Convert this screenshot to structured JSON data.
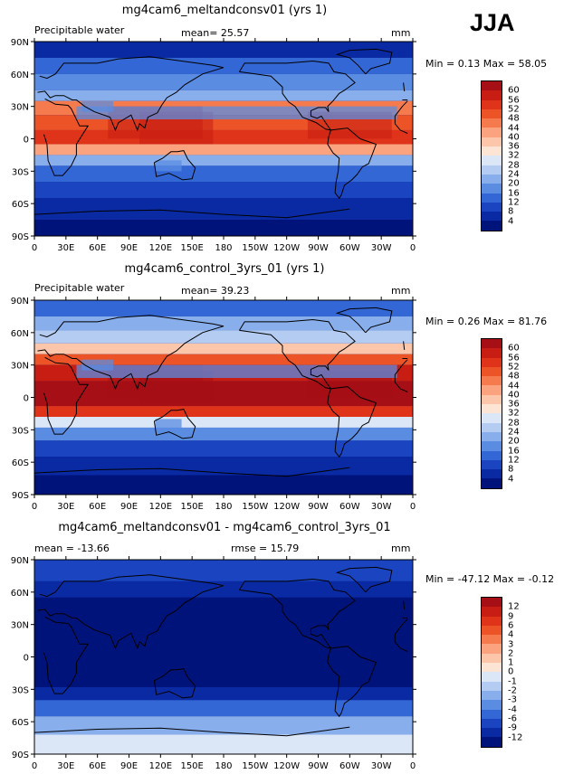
{
  "season_label": "JJA",
  "panels": [
    {
      "title": "mg4cam6_meltandconsv01 (yrs 1)",
      "left_label": "Precipitable water",
      "mean_label": "mean=  25.57",
      "unit": "mm",
      "minmax": "Min =   0.13  Max =  58.05",
      "cbar_labels": [
        "60",
        "56",
        "52",
        "48",
        "44",
        "40",
        "36",
        "32",
        "28",
        "24",
        "20",
        "16",
        "12",
        "8",
        "4"
      ],
      "cbar_colors": [
        "#a50f15",
        "#c81d12",
        "#e0341a",
        "#ec5428",
        "#f57b4e",
        "#fba27e",
        "#fcc6ab",
        "#fde5d6",
        "#dbe6f6",
        "#b4ccf1",
        "#88aeeb",
        "#5a8ce2",
        "#3467d6",
        "#1b45c0",
        "#0a2aa3",
        "#00137a"
      ],
      "field": "wet"
    },
    {
      "title": "mg4cam6_control_3yrs_01 (yrs 1)",
      "left_label": "Precipitable water",
      "mean_label": "mean=  39.23",
      "unit": "mm",
      "minmax": "Min =   0.26  Max =  81.76",
      "cbar_labels": [
        "60",
        "56",
        "52",
        "48",
        "44",
        "40",
        "36",
        "32",
        "28",
        "24",
        "20",
        "16",
        "12",
        "8",
        "4"
      ],
      "cbar_colors": [
        "#a50f15",
        "#c81d12",
        "#e0341a",
        "#ec5428",
        "#f57b4e",
        "#fba27e",
        "#fcc6ab",
        "#fde5d6",
        "#dbe6f6",
        "#b4ccf1",
        "#88aeeb",
        "#5a8ce2",
        "#3467d6",
        "#1b45c0",
        "#0a2aa3",
        "#00137a"
      ],
      "field": "wetter"
    },
    {
      "title": "mg4cam6_meltandconsv01 - mg4cam6_control_3yrs_01",
      "left_label": "mean = -13.66",
      "mean_label": "rmse =  15.79",
      "unit": "mm",
      "minmax": "Min = -47.12  Max =  -0.12",
      "cbar_labels": [
        "12",
        "9",
        "6",
        "4",
        "3",
        "2",
        "1",
        "0",
        "-1",
        "-2",
        "-3",
        "-4",
        "-6",
        "-9",
        "-12"
      ],
      "cbar_colors": [
        "#a50f15",
        "#c81d12",
        "#e0341a",
        "#ec5428",
        "#f57b4e",
        "#fba27e",
        "#fcc6ab",
        "#fde5d6",
        "#dbe6f6",
        "#b4ccf1",
        "#88aeeb",
        "#5a8ce2",
        "#3467d6",
        "#1b45c0",
        "#0a2aa3",
        "#00137a"
      ],
      "field": "diff"
    }
  ],
  "lat_ticks": [
    "90N",
    "60N",
    "30N",
    "0",
    "30S",
    "60S",
    "90S"
  ],
  "lon_ticks": [
    "0",
    "30E",
    "60E",
    "90E",
    "120E",
    "150E",
    "180",
    "150W",
    "120W",
    "90W",
    "60W",
    "30W",
    "0"
  ]
}
